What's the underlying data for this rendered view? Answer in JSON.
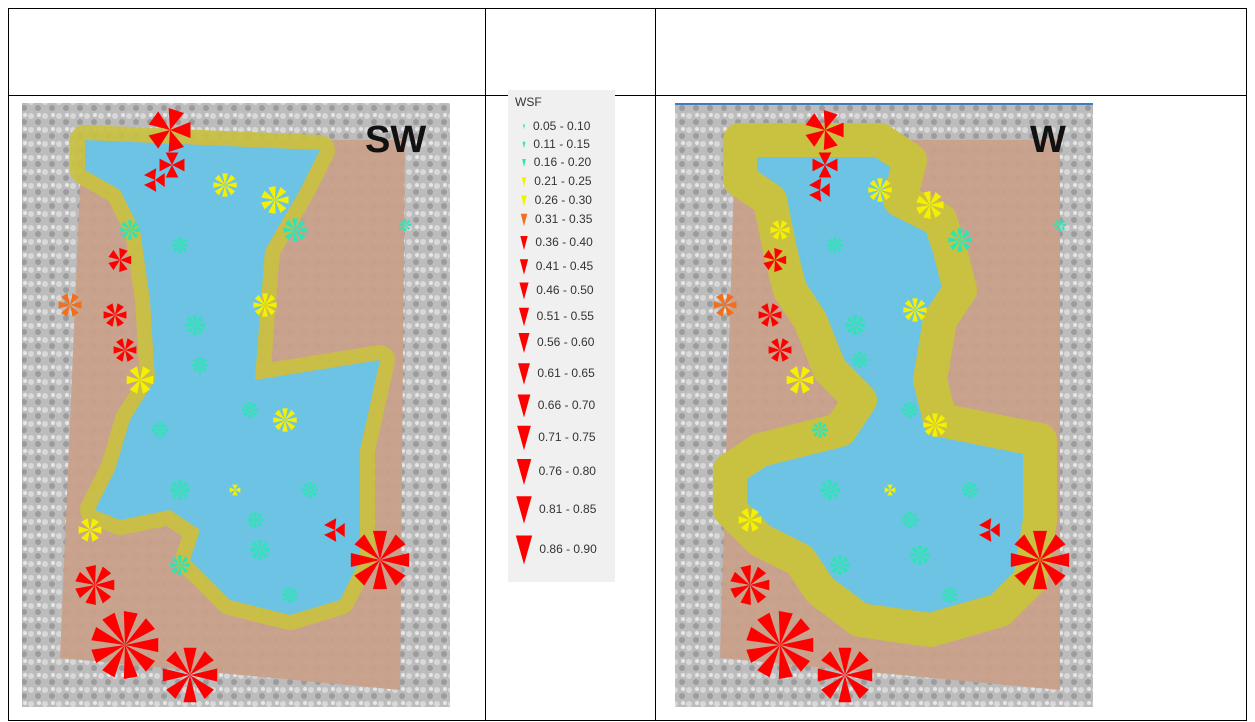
{
  "maps": [
    {
      "label": "SW"
    },
    {
      "label": "W"
    }
  ],
  "legend": {
    "title": "WSF",
    "items": [
      {
        "label": "0.05 - 0.10",
        "color": "#2fe3b4"
      },
      {
        "label": "0.11 - 0.15",
        "color": "#2fe3b4"
      },
      {
        "label": "0.16 - 0.20",
        "color": "#2fe3b4"
      },
      {
        "label": "0.21 - 0.25",
        "color": "#f5f000"
      },
      {
        "label": "0.26 - 0.30",
        "color": "#f5f000"
      },
      {
        "label": "0.31 - 0.35",
        "color": "#f07020"
      },
      {
        "label": "0.36 - 0.40",
        "color": "#ff0000"
      },
      {
        "label": "0.41 - 0.45",
        "color": "#ff0000"
      },
      {
        "label": "0.46 - 0.50",
        "color": "#ff0000"
      },
      {
        "label": "0.51 - 0.55",
        "color": "#ff0000"
      },
      {
        "label": "0.56 - 0.60",
        "color": "#ff0000"
      },
      {
        "label": "0.61 - 0.65",
        "color": "#ff0000"
      },
      {
        "label": "0.66 - 0.70",
        "color": "#ff0000"
      },
      {
        "label": "0.71 - 0.75",
        "color": "#ff0000"
      },
      {
        "label": "0.76 - 0.80",
        "color": "#ff0000"
      },
      {
        "label": "0.81 - 0.85",
        "color": "#ff0000"
      },
      {
        "label": "0.86 - 0.90",
        "color": "#ff0000"
      }
    ]
  }
}
